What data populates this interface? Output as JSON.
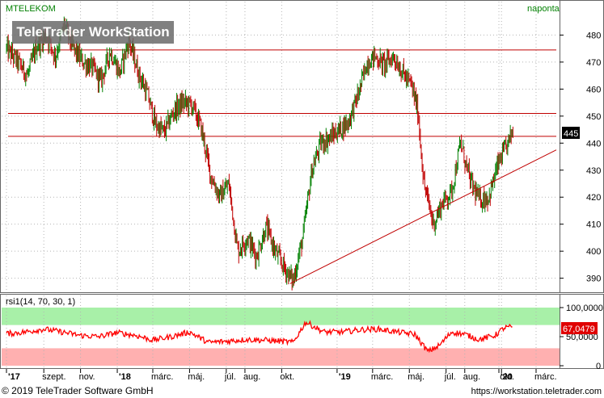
{
  "header": {
    "ticker": "MTELEKOM",
    "frequency": "naponta",
    "watermark": "TeleTrader WorkStation"
  },
  "footer": {
    "copyright": "© 2019 TeleTrader Software GmbH",
    "url": "https://workstation.teletrader.com"
  },
  "colors": {
    "up": "#008000",
    "down": "#c00000",
    "trendline": "#c00000",
    "rsi_line": "#ff0000",
    "rsi_overbought_zone": "#a8f0a8",
    "rsi_oversold_zone": "#ffb0b0",
    "grid": "#b4b4b4",
    "ticker_text": "#008000"
  },
  "chart_data": [
    {
      "type": "candlestick",
      "series_name": "MTELEKOM",
      "ylim": [
        386,
        487
      ],
      "y_ticks": [
        "390",
        "400",
        "410",
        "420",
        "430",
        "440",
        "450",
        "460",
        "470",
        "480"
      ],
      "last_value": "445",
      "x_ticks": [
        "'17",
        "szept.",
        "nov.",
        "'18",
        "márc.",
        "máj.",
        "júl.",
        "aug.",
        "okt.",
        "'19",
        "márc.",
        "máj.",
        "júl.",
        "aug.",
        "okt.",
        "'20",
        "márc."
      ],
      "horizontal_levels": [
        474.5,
        451,
        442.5
      ],
      "trendline": {
        "start": {
          "date": "2018-10-15",
          "value": 388
        },
        "end": {
          "date": "2019-12-31",
          "value": 437.5
        }
      },
      "grid": true,
      "close_path": [
        {
          "date": "2017-07-01",
          "value": 475
        },
        {
          "date": "2017-07-20",
          "value": 470
        },
        {
          "date": "2017-08-05",
          "value": 465
        },
        {
          "date": "2017-08-20",
          "value": 476
        },
        {
          "date": "2017-09-05",
          "value": 480
        },
        {
          "date": "2017-09-20",
          "value": 472
        },
        {
          "date": "2017-10-05",
          "value": 484
        },
        {
          "date": "2017-10-20",
          "value": 475
        },
        {
          "date": "2017-11-05",
          "value": 470
        },
        {
          "date": "2017-11-20",
          "value": 468
        },
        {
          "date": "2017-12-05",
          "value": 463
        },
        {
          "date": "2017-12-20",
          "value": 474
        },
        {
          "date": "2018-01-05",
          "value": 466
        },
        {
          "date": "2018-01-20",
          "value": 478
        },
        {
          "date": "2018-02-05",
          "value": 466
        },
        {
          "date": "2018-02-20",
          "value": 458
        },
        {
          "date": "2018-03-05",
          "value": 447
        },
        {
          "date": "2018-03-20",
          "value": 444
        },
        {
          "date": "2018-04-05",
          "value": 452
        },
        {
          "date": "2018-04-20",
          "value": 455
        },
        {
          "date": "2018-05-05",
          "value": 454
        },
        {
          "date": "2018-05-20",
          "value": 446
        },
        {
          "date": "2018-06-05",
          "value": 428
        },
        {
          "date": "2018-06-20",
          "value": 420
        },
        {
          "date": "2018-07-05",
          "value": 425
        },
        {
          "date": "2018-07-20",
          "value": 400
        },
        {
          "date": "2018-08-05",
          "value": 405
        },
        {
          "date": "2018-08-20",
          "value": 398
        },
        {
          "date": "2018-09-05",
          "value": 409
        },
        {
          "date": "2018-09-20",
          "value": 400
        },
        {
          "date": "2018-10-05",
          "value": 394
        },
        {
          "date": "2018-10-20",
          "value": 389
        },
        {
          "date": "2018-11-05",
          "value": 405
        },
        {
          "date": "2018-11-20",
          "value": 430
        },
        {
          "date": "2018-12-05",
          "value": 440
        },
        {
          "date": "2018-12-20",
          "value": 442
        },
        {
          "date": "2019-01-05",
          "value": 445
        },
        {
          "date": "2019-01-20",
          "value": 448
        },
        {
          "date": "2019-02-05",
          "value": 458
        },
        {
          "date": "2019-02-20",
          "value": 470
        },
        {
          "date": "2019-03-05",
          "value": 472
        },
        {
          "date": "2019-03-20",
          "value": 469
        },
        {
          "date": "2019-04-05",
          "value": 472
        },
        {
          "date": "2019-04-20",
          "value": 466
        },
        {
          "date": "2019-05-05",
          "value": 461
        },
        {
          "date": "2019-05-15",
          "value": 452
        },
        {
          "date": "2019-05-25",
          "value": 425
        },
        {
          "date": "2019-06-10",
          "value": 410
        },
        {
          "date": "2019-06-25",
          "value": 418
        },
        {
          "date": "2019-07-10",
          "value": 422
        },
        {
          "date": "2019-07-25",
          "value": 440
        },
        {
          "date": "2019-08-10",
          "value": 426
        },
        {
          "date": "2019-08-25",
          "value": 419
        },
        {
          "date": "2019-09-10",
          "value": 420
        },
        {
          "date": "2019-09-25",
          "value": 432
        },
        {
          "date": "2019-10-10",
          "value": 439
        },
        {
          "date": "2019-10-20",
          "value": 445
        }
      ]
    },
    {
      "type": "line",
      "title": "rsi1(14, 70, 30, 1)",
      "ylim": [
        0,
        100
      ],
      "y_ticks": [
        "0",
        "50,0000",
        "100,0000"
      ],
      "last_value": "67,0479",
      "overbought": 70,
      "oversold": 30,
      "series": [
        {
          "name": "rsi1",
          "points": [
            {
              "date": "2017-07-01",
              "value": 55
            },
            {
              "date": "2017-08-01",
              "value": 58
            },
            {
              "date": "2017-09-01",
              "value": 63
            },
            {
              "date": "2017-10-01",
              "value": 58
            },
            {
              "date": "2017-11-01",
              "value": 52
            },
            {
              "date": "2017-12-01",
              "value": 50
            },
            {
              "date": "2018-01-01",
              "value": 57
            },
            {
              "date": "2018-02-01",
              "value": 52
            },
            {
              "date": "2018-03-01",
              "value": 44
            },
            {
              "date": "2018-04-01",
              "value": 50
            },
            {
              "date": "2018-05-01",
              "value": 58
            },
            {
              "date": "2018-06-01",
              "value": 40
            },
            {
              "date": "2018-07-01",
              "value": 42
            },
            {
              "date": "2018-08-01",
              "value": 45
            },
            {
              "date": "2018-09-01",
              "value": 44
            },
            {
              "date": "2018-10-01",
              "value": 42
            },
            {
              "date": "2018-10-20",
              "value": 40
            },
            {
              "date": "2018-11-10",
              "value": 75
            },
            {
              "date": "2018-12-10",
              "value": 58
            },
            {
              "date": "2019-01-10",
              "value": 58
            },
            {
              "date": "2019-02-10",
              "value": 62
            },
            {
              "date": "2019-03-10",
              "value": 63
            },
            {
              "date": "2019-04-10",
              "value": 58
            },
            {
              "date": "2019-05-10",
              "value": 54
            },
            {
              "date": "2019-06-01",
              "value": 24
            },
            {
              "date": "2019-06-20",
              "value": 35
            },
            {
              "date": "2019-07-10",
              "value": 58
            },
            {
              "date": "2019-08-01",
              "value": 54
            },
            {
              "date": "2019-08-25",
              "value": 45
            },
            {
              "date": "2019-09-20",
              "value": 52
            },
            {
              "date": "2019-10-05",
              "value": 65
            },
            {
              "date": "2019-10-20",
              "value": 67.05
            }
          ]
        }
      ]
    }
  ]
}
